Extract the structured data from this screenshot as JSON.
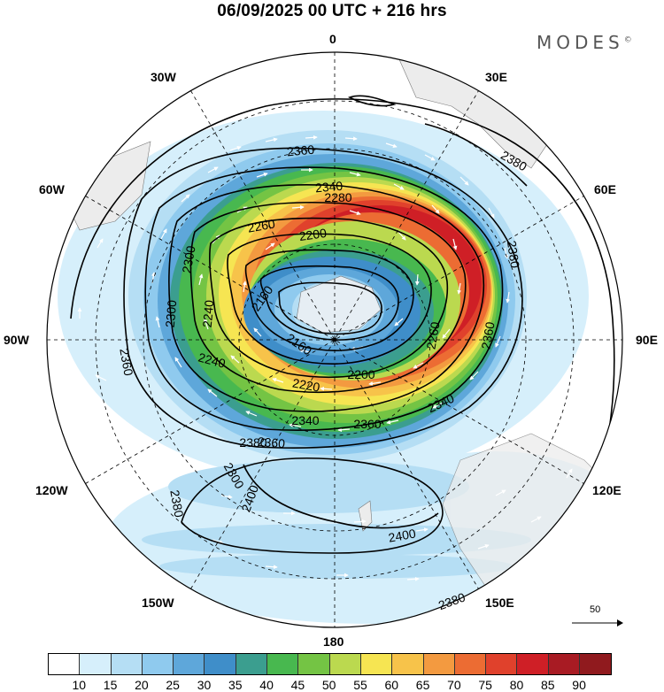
{
  "title": "06/09/2025  00 UTC  + 216 hrs",
  "brand": "MODES",
  "brand_mark": "©",
  "meridian_labels": {
    "m0": "0",
    "m30e": "30E",
    "m60e": "60E",
    "m90e": "90E",
    "m120e": "120E",
    "m150e": "150E",
    "m180": "180",
    "m150w": "150W",
    "m120w": "120W",
    "m90w": "90W",
    "m60w": "60W",
    "m30w": "30W"
  },
  "contour_labels": [
    "2360",
    "2340",
    "2380",
    "2280",
    "2260",
    "2200",
    "2300",
    "2380",
    "2160",
    "2240",
    "2300",
    "2360",
    "2160",
    "2240",
    "2220",
    "2200",
    "2260",
    "2360",
    "2340",
    "2360",
    "2360",
    "2380",
    "2300",
    "2400",
    "2380",
    "2400",
    "2380",
    "2340"
  ],
  "reference_vector": {
    "label": "50"
  },
  "colorbar": {
    "colors": [
      "#ffffff",
      "#d6effb",
      "#b5def4",
      "#8fcaee",
      "#5ea7da",
      "#3f8ec9",
      "#3b9e8f",
      "#48b84f",
      "#74c444",
      "#bbd94f",
      "#f6e552",
      "#f7c34a",
      "#f39a40",
      "#ec6c33",
      "#e0412c",
      "#cf1f26",
      "#a81b23",
      "#901a1e"
    ],
    "ticks": [
      "10",
      "15",
      "20",
      "25",
      "30",
      "35",
      "40",
      "45",
      "50",
      "55",
      "60",
      "65",
      "70",
      "75",
      "80",
      "85",
      "90"
    ]
  }
}
